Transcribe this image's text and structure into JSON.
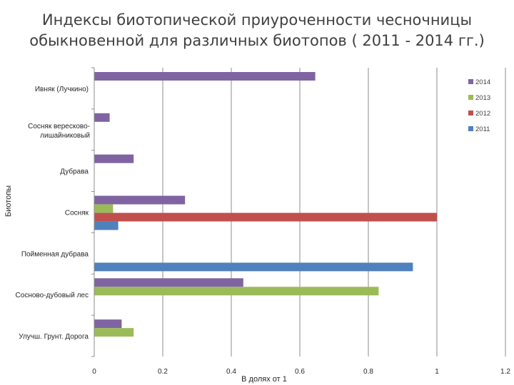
{
  "chart_data": {
    "type": "bar",
    "orientation": "horizontal",
    "title": "Индексы биотопической  приуроченности чесночницы обыкновенной для различных биотопов ( 2011 - 2014 гг.)",
    "title_lines": [
      "Индексы биотопической  приуроченности чесночницы",
      "обыкновенной для различных биотопов ( 2011 - 2014 гг.)"
    ],
    "xlabel": "В долях от 1",
    "ylabel": "Биотопы",
    "xlim": [
      0,
      1.2
    ],
    "xticks": [
      0,
      0.2,
      0.4,
      0.6,
      0.8,
      1,
      1.2
    ],
    "xtick_labels": [
      "0",
      "0.2",
      "0.4",
      "0.6",
      "0.8",
      "1",
      "1.2"
    ],
    "grid": "vertical",
    "legend_position": "top-right",
    "categories": [
      [
        "Ивняк (Лучкино)"
      ],
      [
        "Сосняк вересково-",
        "лишайниковый"
      ],
      [
        "Дубрава"
      ],
      [
        "Сосняк"
      ],
      [
        "Пойменная дубрава"
      ],
      [
        "Сосново-дубовый лес"
      ],
      [
        "Улучш. Грунт. Дорога"
      ]
    ],
    "series": [
      {
        "name": "2014",
        "color": "#8064A2",
        "values": [
          0.645,
          0.045,
          0.115,
          0.265,
          0,
          0.435,
          0.08
        ]
      },
      {
        "name": "2013",
        "color": "#9BBB59",
        "values": [
          0,
          0,
          0,
          0.055,
          0,
          0.83,
          0.115
        ]
      },
      {
        "name": "2012",
        "color": "#C0504D",
        "values": [
          0,
          0,
          0,
          1.0,
          0,
          0,
          0
        ]
      },
      {
        "name": "2011",
        "color": "#4F81BD",
        "values": [
          0,
          0,
          0,
          0.07,
          0.93,
          0,
          0
        ]
      }
    ]
  }
}
